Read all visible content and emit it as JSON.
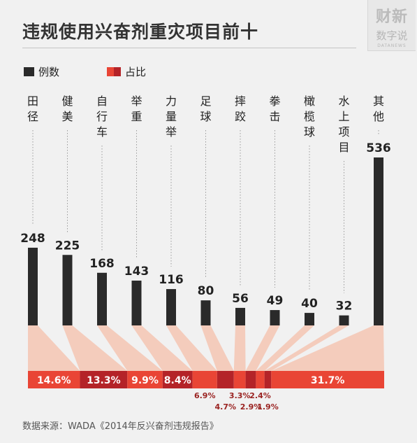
{
  "header": {
    "title": "违规使用兴奋剂重灾项目前十",
    "logo_line1": "财新",
    "logo_line2": "数字说",
    "logo_line3": "DATANEWS"
  },
  "legend": {
    "count_label": "例数",
    "share_label": "占比"
  },
  "source": "数据来源：WADA《2014年反兴奋剂违规报告》",
  "colors": {
    "bar": "#2a2a2a",
    "share_a": "#e94535",
    "share_b": "#b42328",
    "wedge": "#f5c6b3"
  },
  "chart_data": {
    "type": "bar",
    "title": "违规使用兴奋剂重灾项目前十",
    "categories": [
      "田径",
      "健美",
      "自行车",
      "举重",
      "力量举",
      "足球",
      "摔跤",
      "拳击",
      "橄榄球",
      "水上项目",
      "其他"
    ],
    "series": [
      {
        "name": "例数",
        "values": [
          248,
          225,
          168,
          143,
          116,
          80,
          56,
          49,
          40,
          32,
          536
        ]
      },
      {
        "name": "占比",
        "values": [
          14.6,
          13.3,
          9.9,
          8.4,
          6.9,
          4.7,
          3.3,
          2.9,
          2.4,
          1.9,
          31.7
        ]
      }
    ],
    "share_labels": [
      "14.6%",
      "13.3%",
      "9.9%",
      "8.4%",
      "6.9%",
      "4.7%",
      "3.3%",
      "2.9%",
      "2.4%",
      "1.9%",
      "31.7%"
    ],
    "ylim": [
      0,
      536
    ],
    "grid": false
  }
}
